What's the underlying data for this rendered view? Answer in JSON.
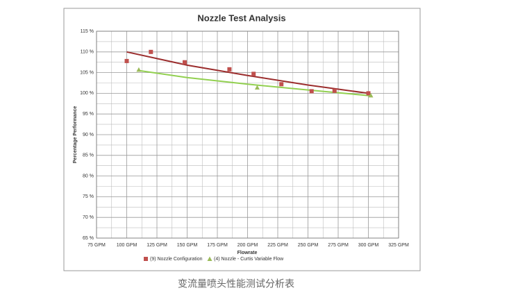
{
  "chart_data": {
    "type": "scatter",
    "title": "Nozzle Test Analysis",
    "xlabel": "Flowrate",
    "ylabel": "Percentage Performance",
    "caption": "变流量喷头性能测试分析表",
    "xlim": [
      75,
      325
    ],
    "ylim": [
      65,
      115
    ],
    "xticks": [
      {
        "value": 75,
        "label": "75 GPM"
      },
      {
        "value": 100,
        "label": "100 GPM"
      },
      {
        "value": 125,
        "label": "125 GPM"
      },
      {
        "value": 150,
        "label": "150 GPM"
      },
      {
        "value": 175,
        "label": "175 GPM"
      },
      {
        "value": 200,
        "label": "200 GPM"
      },
      {
        "value": 225,
        "label": "225 GPM"
      },
      {
        "value": 250,
        "label": "250 GPM"
      },
      {
        "value": 275,
        "label": "275 GPM"
      },
      {
        "value": 300,
        "label": "300 GPM"
      },
      {
        "value": 325,
        "label": "325 GPM"
      }
    ],
    "yticks": [
      {
        "value": 65,
        "label": "65 %"
      },
      {
        "value": 70,
        "label": "70 %"
      },
      {
        "value": 75,
        "label": "75 %"
      },
      {
        "value": 80,
        "label": "80 %"
      },
      {
        "value": 85,
        "label": "85 %"
      },
      {
        "value": 90,
        "label": "90 %"
      },
      {
        "value": 95,
        "label": "95 %"
      },
      {
        "value": 100,
        "label": "100 %"
      },
      {
        "value": 105,
        "label": "105 %"
      },
      {
        "value": 110,
        "label": "110 %"
      },
      {
        "value": 115,
        "label": "115 %"
      }
    ],
    "x_minor_ticks": [
      87.5,
      112.5,
      137.5,
      162.5,
      187.5,
      212.5,
      237.5,
      262.5,
      287.5,
      312.5
    ],
    "y_minor_ticks": [
      67.5,
      72.5,
      77.5,
      82.5,
      87.5,
      92.5,
      97.5,
      102.5,
      107.5,
      112.5
    ],
    "grid": true,
    "legend": "bottom",
    "series": [
      {
        "name": "(9) Nozzle Configuration",
        "color": "#c0504d",
        "marker": "square",
        "x": [
          100,
          120,
          148,
          185,
          205,
          228,
          253,
          272,
          300
        ],
        "values": [
          107.8,
          110,
          107.5,
          105.8,
          104.7,
          102.2,
          100.5,
          100.6,
          100
        ]
      },
      {
        "name": "(4) Nozzle - Curtis Variable Flow",
        "color": "#9bbb59",
        "marker": "triangle",
        "x": [
          110,
          208,
          302
        ],
        "values": [
          105.7,
          101.4,
          99.5
        ]
      }
    ],
    "trendlines": [
      {
        "color": "#9b2d2d",
        "x": [
          100,
          150,
          200,
          250,
          300
        ],
        "values": [
          110,
          106.8,
          104.3,
          102.0,
          100
        ]
      },
      {
        "color": "#92d050",
        "x": [
          110,
          150,
          200,
          250,
          302
        ],
        "values": [
          105.5,
          103.8,
          102.2,
          100.8,
          99.4
        ]
      }
    ]
  }
}
